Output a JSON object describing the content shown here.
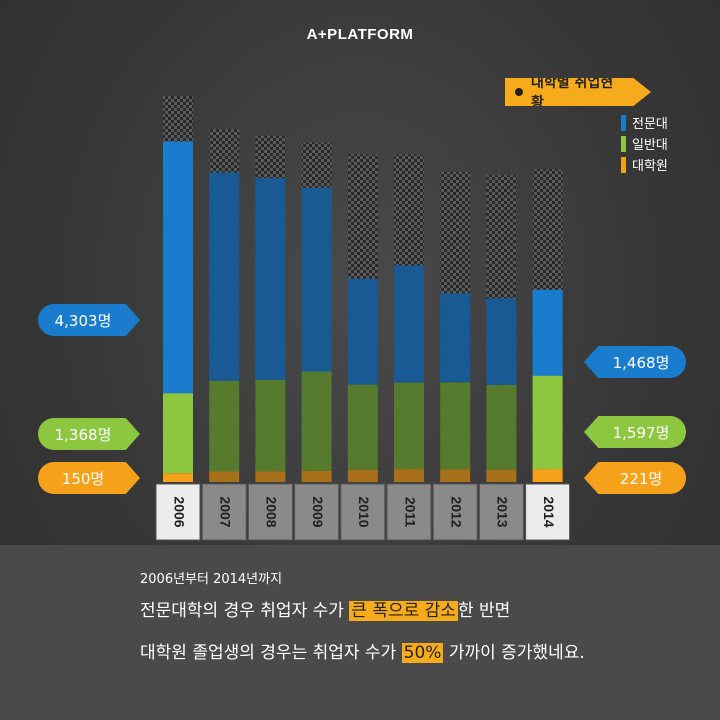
{
  "brand": "A+PLATFORM",
  "legend": {
    "title": "대학별 취업현황",
    "items": [
      {
        "label": "전문대",
        "color": "#1a7ccc"
      },
      {
        "label": "일반대",
        "color": "#8dc63f"
      },
      {
        "label": "대학원",
        "color": "#f6a11a"
      }
    ]
  },
  "chart_data": {
    "type": "bar",
    "stacked": true,
    "categories": [
      "2006",
      "2007",
      "2008",
      "2009",
      "2010",
      "2011",
      "2012",
      "2013",
      "2014"
    ],
    "highlighted_categories": [
      "2006",
      "2014"
    ],
    "series": [
      {
        "name": "대학원",
        "values": [
          150,
          180,
          185,
          190,
          210,
          220,
          215,
          210,
          221
        ]
      },
      {
        "name": "일반대",
        "values": [
          1368,
          1550,
          1560,
          1700,
          1455,
          1480,
          1490,
          1450,
          1597
        ]
      },
      {
        "name": "전문대",
        "values": [
          4303,
          3560,
          3450,
          3140,
          1810,
          2000,
          1520,
          1480,
          1468
        ]
      }
    ],
    "totals_background": [
      6600,
      6030,
      5920,
      5800,
      5600,
      5600,
      5300,
      5250,
      5350
    ],
    "annotations": {
      "left": [
        {
          "series": "전문대",
          "label": "4,303명"
        },
        {
          "series": "일반대",
          "label": "1,368명"
        },
        {
          "series": "대학원",
          "label": "150명"
        }
      ],
      "right": [
        {
          "series": "전문대",
          "label": "1,468명"
        },
        {
          "series": "일반대",
          "label": "1,597명"
        },
        {
          "series": "대학원",
          "label": "221명"
        }
      ]
    }
  },
  "text": {
    "subtitle": "2006년부터 2014년까지",
    "line1": {
      "pre": "전문대학의 경우 취업자 수가 ",
      "hl": "큰 폭으로 감소",
      "post": "한 반면"
    },
    "line2": {
      "pre": "대학원 졸업생의 경우는 취업자 수가 ",
      "hl": "50%",
      "post": " 가까이 증가했네요."
    }
  }
}
